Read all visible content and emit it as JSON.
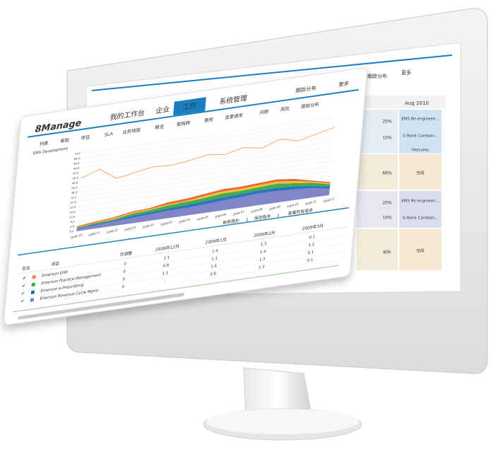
{
  "monitor_screen": {
    "tabs": [
      "跟踪分布",
      "更多"
    ],
    "month": "Aug 2010",
    "percents": [
      "20%",
      "10%",
      "66%",
      "20%",
      "10%",
      "80h"
    ],
    "cells": [
      "EMS Re-engineeri...",
      "G Bank Coreban...",
      "Hercules",
      "空闲",
      "EMS Re-engineeri...",
      "G Bank Coreban...",
      "空闲"
    ]
  },
  "app": {
    "logo": "8Manage",
    "nav": [
      "我的工作台",
      "企业",
      "工作",
      "系统管理",
      "跟踪分布",
      "更多"
    ],
    "subnav": [
      "列表",
      "审批",
      "项目",
      "SLA",
      "业务地图",
      "概览",
      "里程碑",
      "费用",
      "变更请求",
      "问题",
      "风险",
      "跟踪分布"
    ],
    "links": [
      "刷新图形",
      "保存版本",
      "查看所有版本"
    ],
    "table": {
      "headers": [
        "包含",
        "项目",
        "月调整",
        "2008年12月",
        "2009年1月",
        "2009年2月",
        "2009年3月"
      ],
      "rows": [
        [
          "Emerson EHR",
          0,
          1.1,
          1.4,
          1.3,
          0.1
        ],
        [
          "Emerson Practice Management",
          0,
          0.8,
          1.1,
          1.4,
          1.2
        ],
        [
          "Emerson e-Prescribing",
          0,
          1.1,
          1.4,
          1.3,
          0.1
        ],
        [
          "Emerson Revenue Cycle Mgmt",
          0,
          "-",
          0.8,
          1.3,
          0.1
        ]
      ]
    }
  },
  "chart_data": {
    "type": "stacked-area",
    "subtitle": "EMS Development",
    "categories": [
      "2008-10",
      "2008-11",
      "2008-12",
      "2009-01",
      "2009-02",
      "2009-03",
      "2009-04",
      "2009-05",
      "2009-06",
      "2009-07",
      "2009-08",
      "2009-09",
      "2009-10",
      "2009-11",
      "2009-12"
    ],
    "series": [
      {
        "type": "line",
        "color": "#f0a860",
        "values": [
          50,
          56,
          45,
          48,
          51,
          50,
          52,
          55,
          53,
          57,
          54,
          60,
          56,
          60,
          64
        ]
      },
      {
        "color": "#7b7fc6",
        "values": [
          2,
          3,
          4,
          5,
          6,
          7,
          7,
          8,
          9,
          10,
          11,
          11,
          10,
          9,
          6
        ]
      },
      {
        "color": "#1f6fb8",
        "values": [
          0.5,
          1,
          1,
          2,
          2,
          2,
          3,
          3,
          3,
          3,
          3,
          3,
          3,
          2,
          2
        ]
      },
      {
        "color": "#3aa64a",
        "values": [
          0.5,
          1,
          1,
          2,
          2,
          3,
          3,
          3,
          4,
          3,
          3,
          4,
          3,
          3,
          2
        ]
      },
      {
        "color": "#f2c12e",
        "values": [
          0.5,
          0.5,
          1,
          1,
          1,
          1,
          1,
          2,
          2,
          2,
          2,
          2,
          2,
          1,
          1
        ]
      },
      {
        "color": "#e8602a",
        "values": [
          1,
          1,
          1,
          1,
          1,
          2,
          2,
          2,
          2,
          2,
          2,
          2,
          2,
          1,
          1
        ]
      }
    ],
    "ylim": [
      0,
      73.6
    ],
    "yticks": [
      {
        "value": 0,
        "label": "0.0"
      },
      4.6,
      9.2,
      13.8,
      18.4,
      {
        "value": 23,
        "label": "23.0"
      },
      27.6,
      32.2,
      36.8,
      41.4,
      {
        "value": 46,
        "label": "46.0"
      },
      50.6,
      55.2,
      59.8,
      64.4,
      {
        "value": 69,
        "label": "69.0"
      },
      73.6
    ],
    "grid": true
  }
}
